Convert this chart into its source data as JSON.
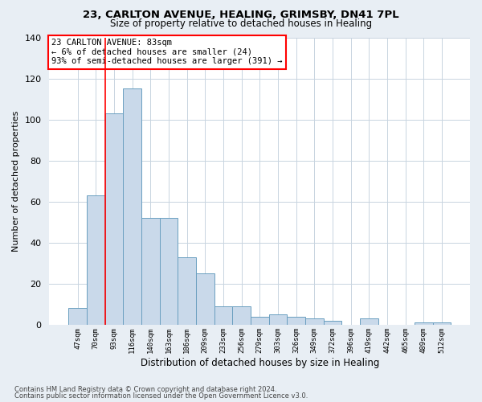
{
  "title1": "23, CARLTON AVENUE, HEALING, GRIMSBY, DN41 7PL",
  "title2": "Size of property relative to detached houses in Healing",
  "xlabel": "Distribution of detached houses by size in Healing",
  "ylabel": "Number of detached properties",
  "bar_labels": [
    "47sqm",
    "70sqm",
    "93sqm",
    "116sqm",
    "140sqm",
    "163sqm",
    "186sqm",
    "209sqm",
    "233sqm",
    "256sqm",
    "279sqm",
    "303sqm",
    "326sqm",
    "349sqm",
    "372sqm",
    "396sqm",
    "419sqm",
    "442sqm",
    "465sqm",
    "489sqm",
    "512sqm"
  ],
  "bar_values": [
    8,
    63,
    103,
    115,
    52,
    52,
    33,
    25,
    9,
    9,
    4,
    5,
    4,
    3,
    2,
    0,
    3,
    0,
    0,
    1,
    1
  ],
  "bar_color": "#c9d9ea",
  "bar_edge_color": "#6a9fc0",
  "annotation_text": "23 CARLTON AVENUE: 83sqm\n← 6% of detached houses are smaller (24)\n93% of semi-detached houses are larger (391) →",
  "annotation_box_color": "white",
  "annotation_box_edge_color": "red",
  "vline_color": "red",
  "vline_x_index": 1,
  "ylim": [
    0,
    140
  ],
  "yticks": [
    0,
    20,
    40,
    60,
    80,
    100,
    120,
    140
  ],
  "footer1": "Contains HM Land Registry data © Crown copyright and database right 2024.",
  "footer2": "Contains public sector information licensed under the Open Government Licence v3.0.",
  "background_color": "#e8eef4",
  "plot_bg_color": "white",
  "grid_color": "#c8d4e0"
}
